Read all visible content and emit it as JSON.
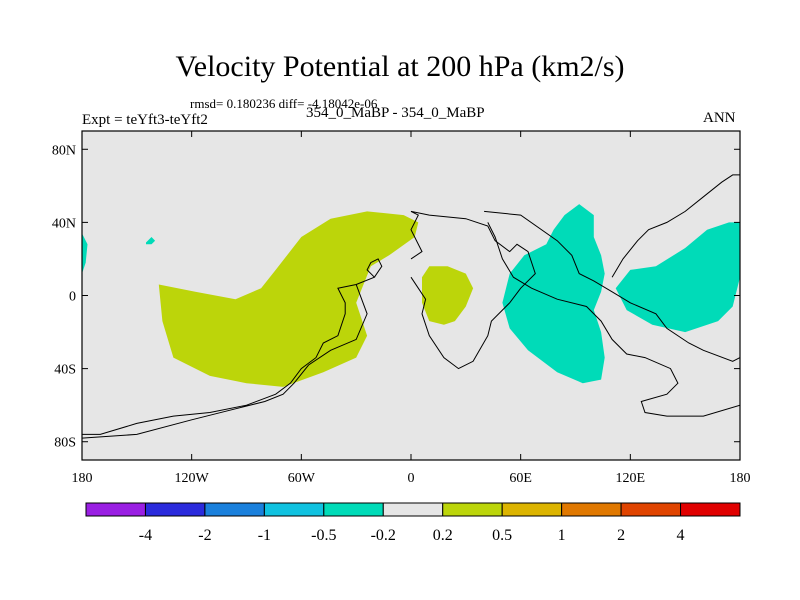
{
  "title": "Velocity Potential at 200 hPa (km2/s)",
  "rmsd_text": "rmsd= 0.180236 diff= -4.18042e-06",
  "left_label": "Expt = teYft3-teYft2",
  "center_label": "354_0_MaBP - 354_0_MaBP",
  "right_label": "ANN",
  "chart_data": {
    "type": "contour-map",
    "title": "Velocity Potential at 200 hPa (km2/s)",
    "x_ticks": [
      "180",
      "120W",
      "60W",
      "0",
      "60E",
      "120E",
      "180"
    ],
    "y_ticks": [
      "80N",
      "40N",
      "0",
      "40S",
      "80S"
    ],
    "xlim": [
      -180,
      180
    ],
    "ylim": [
      -90,
      90
    ],
    "colors": {
      "background": "#e6e6e6",
      "positive_fill": "#bcd50a",
      "negative_fill": "#00dbb8",
      "coast": "#000000"
    },
    "colorbar": {
      "levels": [
        "-4",
        "-2",
        "-1",
        "-0.5",
        "-0.2",
        "0.2",
        "0.5",
        "1",
        "2",
        "4"
      ],
      "colors": [
        "#9a1fe3",
        "#2b2bdc",
        "#1a80dc",
        "#10c2e0",
        "#00dbb8",
        "#e6e6e6",
        "#bcd50a",
        "#dcb400",
        "#e07800",
        "#e04400",
        "#e00000"
      ]
    },
    "regions": [
      {
        "name": "western-hemisphere-positive",
        "sign": "positive",
        "range": "0.2 to 0.5",
        "vertices": [
          [
            -138,
            6
          ],
          [
            -136,
            -14
          ],
          [
            -130,
            -34
          ],
          [
            -110,
            -44
          ],
          [
            -90,
            -48
          ],
          [
            -70,
            -50
          ],
          [
            -48,
            -42
          ],
          [
            -30,
            -34
          ],
          [
            -24,
            -22
          ],
          [
            -30,
            -4
          ],
          [
            -22,
            16
          ],
          [
            -12,
            22
          ],
          [
            2,
            32
          ],
          [
            4,
            40
          ],
          [
            -4,
            44
          ],
          [
            -24,
            46
          ],
          [
            -44,
            42
          ],
          [
            -60,
            32
          ],
          [
            -74,
            14
          ],
          [
            -82,
            4
          ],
          [
            -96,
            -2
          ],
          [
            -118,
            2
          ]
        ]
      },
      {
        "name": "africa-positive",
        "sign": "positive",
        "range": "0.2 to 0.5",
        "vertices": [
          [
            6,
            10
          ],
          [
            10,
            16
          ],
          [
            20,
            16
          ],
          [
            30,
            12
          ],
          [
            34,
            4
          ],
          [
            30,
            -6
          ],
          [
            24,
            -14
          ],
          [
            18,
            -16
          ],
          [
            10,
            -14
          ],
          [
            6,
            -4
          ]
        ]
      },
      {
        "name": "pacific-small-negative",
        "sign": "negative",
        "range": "-0.5 to -0.2",
        "vertices": [
          [
            -145,
            29
          ],
          [
            -142,
            32
          ],
          [
            -140,
            30
          ],
          [
            -142,
            28
          ],
          [
            -145,
            28
          ]
        ]
      },
      {
        "name": "dateline-edge-negative",
        "sign": "negative",
        "range": "-0.5 to -0.2",
        "vertices": [
          [
            -180,
            34
          ],
          [
            -177,
            28
          ],
          [
            -178,
            18
          ],
          [
            -180,
            12
          ]
        ]
      },
      {
        "name": "indian-ocean-negative",
        "sign": "negative",
        "range": "-0.5 to -0.2",
        "vertices": [
          [
            50,
            -4
          ],
          [
            54,
            12
          ],
          [
            62,
            22
          ],
          [
            74,
            28
          ],
          [
            78,
            36
          ],
          [
            84,
            44
          ],
          [
            92,
            50
          ],
          [
            100,
            44
          ],
          [
            100,
            32
          ],
          [
            104,
            22
          ],
          [
            106,
            12
          ],
          [
            104,
            2
          ],
          [
            100,
            -8
          ],
          [
            104,
            -20
          ],
          [
            106,
            -34
          ],
          [
            104,
            -46
          ],
          [
            94,
            -48
          ],
          [
            80,
            -42
          ],
          [
            64,
            -30
          ],
          [
            54,
            -18
          ]
        ]
      },
      {
        "name": "west-pacific-negative",
        "sign": "negative",
        "range": "-0.5 to -0.2",
        "vertices": [
          [
            112,
            4
          ],
          [
            120,
            14
          ],
          [
            134,
            16
          ],
          [
            150,
            26
          ],
          [
            162,
            36
          ],
          [
            174,
            40
          ],
          [
            180,
            40
          ],
          [
            180,
            10
          ],
          [
            176,
            -6
          ],
          [
            168,
            -14
          ],
          [
            150,
            -20
          ],
          [
            132,
            -16
          ],
          [
            118,
            -8
          ]
        ]
      }
    ],
    "coastlines": [
      {
        "name": "americas-outline",
        "vertices": [
          [
            -180,
            -76
          ],
          [
            -170,
            -76
          ],
          [
            -150,
            -70
          ],
          [
            -130,
            -66
          ],
          [
            -110,
            -64
          ],
          [
            -90,
            -60
          ],
          [
            -74,
            -54
          ],
          [
            -66,
            -48
          ],
          [
            -60,
            -40
          ],
          [
            -52,
            -34
          ],
          [
            -48,
            -26
          ],
          [
            -40,
            -22
          ],
          [
            -36,
            -10
          ],
          [
            -36,
            -4
          ],
          [
            -40,
            4
          ],
          [
            -30,
            6
          ],
          [
            -20,
            10
          ],
          [
            -24,
            14
          ],
          [
            -22,
            18
          ],
          [
            -18,
            20
          ],
          [
            -16,
            16
          ],
          [
            -20,
            10
          ],
          [
            -30,
            6
          ],
          [
            -24,
            -10
          ],
          [
            -30,
            -24
          ],
          [
            -44,
            -30
          ],
          [
            -56,
            -38
          ],
          [
            -64,
            -48
          ],
          [
            -70,
            -54
          ],
          [
            -80,
            -58
          ],
          [
            -96,
            -62
          ],
          [
            -120,
            -68
          ],
          [
            -150,
            -76
          ],
          [
            -180,
            -78
          ]
        ]
      },
      {
        "name": "africa-outline",
        "vertices": [
          [
            0,
            20
          ],
          [
            6,
            24
          ],
          [
            0,
            36
          ],
          [
            2,
            40
          ],
          [
            4,
            44
          ],
          [
            0,
            46
          ],
          [
            10,
            44
          ],
          [
            30,
            42
          ],
          [
            42,
            38
          ],
          [
            46,
            30
          ],
          [
            54,
            24
          ],
          [
            58,
            28
          ],
          [
            64,
            24
          ],
          [
            68,
            12
          ],
          [
            60,
            4
          ],
          [
            54,
            -4
          ],
          [
            44,
            -14
          ],
          [
            42,
            -22
          ],
          [
            34,
            -36
          ],
          [
            26,
            -40
          ],
          [
            18,
            -34
          ],
          [
            10,
            -22
          ],
          [
            6,
            -10
          ],
          [
            8,
            -2
          ],
          [
            4,
            4
          ],
          [
            0,
            10
          ]
        ]
      },
      {
        "name": "asia-australia-outline",
        "vertices": [
          [
            40,
            46
          ],
          [
            60,
            44
          ],
          [
            80,
            30
          ],
          [
            88,
            22
          ],
          [
            92,
            12
          ],
          [
            100,
            8
          ],
          [
            110,
            2
          ],
          [
            120,
            -4
          ],
          [
            134,
            -10
          ],
          [
            140,
            -18
          ],
          [
            152,
            -26
          ],
          [
            160,
            -30
          ],
          [
            176,
            -36
          ],
          [
            180,
            -34
          ],
          [
            180,
            -60
          ],
          [
            160,
            -66
          ],
          [
            140,
            -66
          ],
          [
            128,
            -64
          ],
          [
            126,
            -58
          ],
          [
            140,
            -54
          ],
          [
            146,
            -48
          ],
          [
            142,
            -40
          ],
          [
            128,
            -34
          ],
          [
            118,
            -32
          ],
          [
            110,
            -24
          ],
          [
            104,
            -14
          ],
          [
            96,
            -6
          ],
          [
            80,
            -2
          ],
          [
            66,
            4
          ],
          [
            56,
            10
          ],
          [
            50,
            20
          ],
          [
            46,
            32
          ],
          [
            42,
            40
          ]
        ]
      },
      {
        "name": "east-asia-outline",
        "vertices": [
          [
            110,
            10
          ],
          [
            116,
            20
          ],
          [
            124,
            30
          ],
          [
            130,
            36
          ],
          [
            140,
            40
          ],
          [
            150,
            46
          ],
          [
            160,
            54
          ],
          [
            170,
            62
          ],
          [
            176,
            66
          ],
          [
            180,
            66
          ]
        ]
      }
    ]
  }
}
